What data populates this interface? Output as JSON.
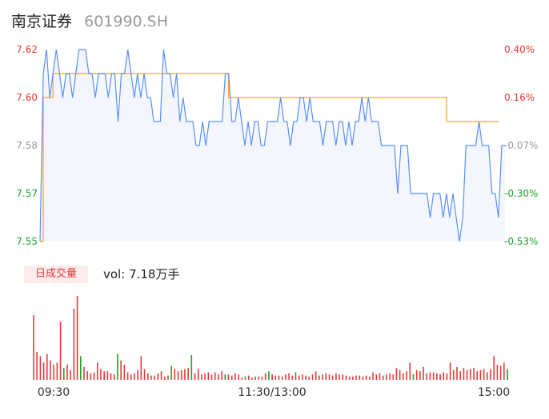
{
  "header": {
    "name": "南京证券",
    "code": "601990.SH"
  },
  "volume_panel": {
    "title": "日成交量",
    "readout_label": "vol:",
    "readout_value": "7.18万手"
  },
  "colors": {
    "price_line": "#5b8ff9",
    "avg_line": "#f5a623",
    "area_fill": "#f3f6fd",
    "up": "#e83a3a",
    "down": "#1aa32b",
    "flat": "#999999",
    "axis_text": "#999999"
  },
  "chart_data": [
    {
      "type": "line",
      "y_ticks": [
        "7.62",
        "7.60",
        "7.58",
        "7.57",
        "7.55"
      ],
      "y_tick_values": [
        7.62,
        7.6,
        7.58,
        7.57,
        7.55
      ],
      "pct_ticks": [
        "0.40%",
        "0.16%",
        "-0.07%",
        "-0.30%",
        "-0.53%"
      ],
      "tick_colors": [
        "up",
        "up",
        "flat",
        "down",
        "down"
      ],
      "ylim": [
        7.55,
        7.62
      ],
      "series": [
        {
          "values": [
            7.55,
            7.61,
            7.62,
            7.6,
            7.61,
            7.62,
            7.61,
            7.6,
            7.61,
            7.61,
            7.6,
            7.61,
            7.62,
            7.62,
            7.62,
            7.61,
            7.61,
            7.6,
            7.61,
            7.61,
            7.61,
            7.6,
            7.61,
            7.61,
            7.59,
            7.61,
            7.61,
            7.62,
            7.61,
            7.6,
            7.61,
            7.6,
            7.61,
            7.6,
            7.6,
            7.59,
            7.59,
            7.59,
            7.62,
            7.61,
            7.61,
            7.6,
            7.61,
            7.59,
            7.6,
            7.59,
            7.59,
            7.59,
            7.58,
            7.58,
            7.59,
            7.58,
            7.59,
            7.59,
            7.59,
            7.59,
            7.59,
            7.61,
            7.61,
            7.59,
            7.59,
            7.6,
            7.59,
            7.58,
            7.59,
            7.58,
            7.59,
            7.59,
            7.58,
            7.58,
            7.59,
            7.59,
            7.59,
            7.59,
            7.6,
            7.59,
            7.59,
            7.58,
            7.59,
            7.59,
            7.6,
            7.6,
            7.59,
            7.6,
            7.59,
            7.59,
            7.59,
            7.58,
            7.59,
            7.59,
            7.59,
            7.58,
            7.59,
            7.59,
            7.58,
            7.59,
            7.58,
            7.59,
            7.59,
            7.6,
            7.59,
            7.6,
            7.59,
            7.59,
            7.59,
            7.58,
            7.58,
            7.58,
            7.58,
            7.58,
            7.57,
            7.58,
            7.58,
            7.58,
            7.57,
            7.57,
            7.57,
            7.57,
            7.57,
            7.57,
            7.56,
            7.57,
            7.57,
            7.57,
            7.56,
            7.57,
            7.56,
            7.57,
            7.56,
            7.55,
            7.56,
            7.58,
            7.58,
            7.58,
            7.58,
            7.59,
            7.58,
            7.58,
            7.58,
            7.57,
            7.57,
            7.56,
            7.58,
            7.58
          ]
        },
        {
          "values": [
            7.55,
            7.6,
            7.6,
            7.6,
            7.61,
            7.61,
            7.61,
            7.61,
            7.61,
            7.61,
            7.61,
            7.61,
            7.61,
            7.61,
            7.61,
            7.61,
            7.61,
            7.61,
            7.61,
            7.61,
            7.61,
            7.61,
            7.61,
            7.61,
            7.61,
            7.61,
            7.61,
            7.61,
            7.61,
            7.61,
            7.61,
            7.61,
            7.61,
            7.61,
            7.61,
            7.61,
            7.61,
            7.61,
            7.61,
            7.61,
            7.61,
            7.61,
            7.61,
            7.61,
            7.61,
            7.61,
            7.61,
            7.61,
            7.61,
            7.61,
            7.61,
            7.61,
            7.61,
            7.61,
            7.61,
            7.61,
            7.61,
            7.61,
            7.6,
            7.6,
            7.6,
            7.6,
            7.6,
            7.6,
            7.6,
            7.6,
            7.6,
            7.6,
            7.6,
            7.6,
            7.6,
            7.6,
            7.6,
            7.6,
            7.6,
            7.6,
            7.6,
            7.6,
            7.6,
            7.6,
            7.6,
            7.6,
            7.6,
            7.6,
            7.6,
            7.6,
            7.6,
            7.6,
            7.6,
            7.6,
            7.6,
            7.6,
            7.6,
            7.6,
            7.6,
            7.6,
            7.6,
            7.6,
            7.6,
            7.6,
            7.6,
            7.6,
            7.6,
            7.6,
            7.6,
            7.6,
            7.6,
            7.6,
            7.6,
            7.6,
            7.6,
            7.6,
            7.6,
            7.6,
            7.6,
            7.6,
            7.6,
            7.6,
            7.6,
            7.6,
            7.6,
            7.6,
            7.6,
            7.6,
            7.6,
            7.59,
            7.59,
            7.59,
            7.59,
            7.59,
            7.59,
            7.59,
            7.59,
            7.59,
            7.59,
            7.59,
            7.59,
            7.59,
            7.59,
            7.59,
            7.59,
            7.59
          ]
        }
      ]
    },
    {
      "type": "bar",
      "x_ticks": [
        "09:30",
        "11:30/13:00",
        "15:00"
      ],
      "values": [
        60,
        26,
        22,
        16,
        24,
        18,
        14,
        16,
        54,
        11,
        14,
        9,
        66,
        78,
        22,
        12,
        8,
        6,
        7,
        16,
        10,
        8,
        8,
        6,
        5,
        24,
        18,
        14,
        7,
        5,
        6,
        9,
        22,
        10,
        6,
        4,
        4,
        6,
        8,
        3,
        4,
        13,
        10,
        8,
        9,
        10,
        11,
        23,
        6,
        10,
        5,
        6,
        7,
        5,
        7,
        5,
        8,
        5,
        5,
        4,
        6,
        5,
        2,
        3,
        4,
        2,
        3,
        3,
        3,
        6,
        8,
        5,
        4,
        4,
        3,
        5,
        6,
        4,
        7,
        4,
        5,
        4,
        3,
        5,
        8,
        4,
        5,
        6,
        5,
        4,
        6,
        5,
        5,
        4,
        3,
        3,
        4,
        4,
        3,
        4,
        3,
        7,
        5,
        6,
        4,
        5,
        6,
        5,
        11,
        9,
        6,
        8,
        16,
        5,
        9,
        8,
        12,
        6,
        7,
        7,
        6,
        5,
        7,
        6,
        16,
        9,
        12,
        8,
        11,
        9,
        10,
        11,
        8,
        9,
        10,
        7,
        10,
        22,
        14,
        13,
        16,
        10
      ],
      "directions": [
        "up",
        "up",
        "up",
        "up",
        "up",
        "up",
        "up",
        "up",
        "up",
        "down",
        "up",
        "up",
        "up",
        "up",
        "down",
        "up",
        "up",
        "up",
        "up",
        "up",
        "up",
        "up",
        "up",
        "up",
        "up",
        "down",
        "up",
        "up",
        "up",
        "up",
        "up",
        "up",
        "up",
        "up",
        "up",
        "up",
        "up",
        "up",
        "up",
        "up",
        "up",
        "down",
        "up",
        "up",
        "up",
        "up",
        "up",
        "down",
        "up",
        "up",
        "up",
        "up",
        "up",
        "up",
        "up",
        "up",
        "up",
        "down",
        "up",
        "up",
        "up",
        "up",
        "up",
        "down",
        "up",
        "up",
        "up",
        "up",
        "up",
        "up",
        "down",
        "up",
        "up",
        "up",
        "up",
        "up",
        "up",
        "up",
        "down",
        "up",
        "up",
        "up",
        "up",
        "up",
        "up",
        "up",
        "up",
        "up",
        "up",
        "up",
        "up",
        "up",
        "up",
        "up",
        "up",
        "up",
        "up",
        "up",
        "up",
        "up",
        "up",
        "up",
        "up",
        "up",
        "up",
        "up",
        "up",
        "up",
        "up",
        "up",
        "up",
        "up",
        "up",
        "down",
        "up",
        "up",
        "up",
        "up",
        "up",
        "up",
        "up",
        "up",
        "up",
        "up",
        "up",
        "up",
        "up",
        "up",
        "up",
        "up",
        "up",
        "up",
        "up",
        "up",
        "up",
        "up",
        "up",
        "up",
        "up",
        "up",
        "up",
        "down"
      ]
    }
  ]
}
